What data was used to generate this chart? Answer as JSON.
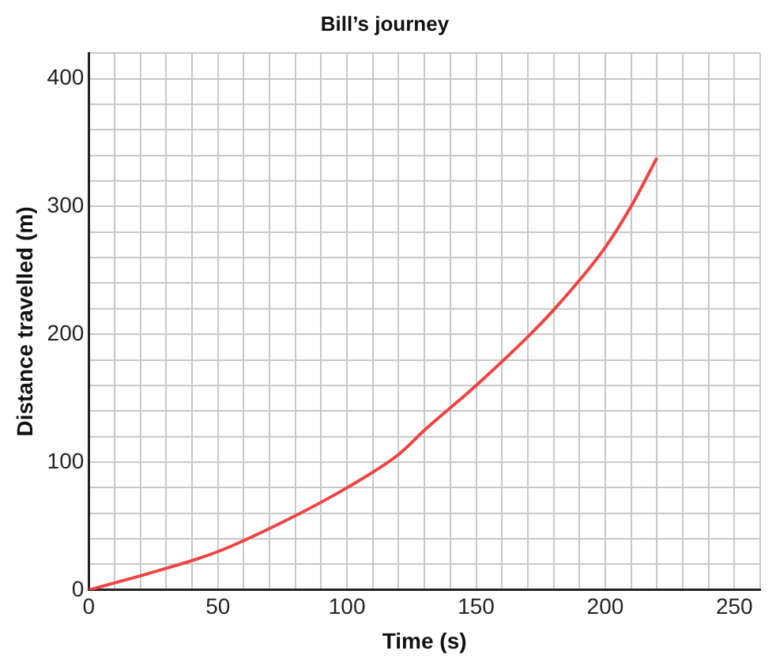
{
  "chart_data": {
    "type": "line",
    "title": "Bill’s journey",
    "xlabel": "Time (s)",
    "ylabel": "Distance travelled (m)",
    "series": [
      {
        "color": "#ee4444",
        "x": [
          0,
          25,
          50,
          75,
          100,
          120,
          130,
          150,
          170,
          180,
          200,
          210,
          220
        ],
        "values": [
          0,
          14,
          30,
          53,
          80,
          106,
          125,
          160,
          198,
          219,
          268,
          300,
          338
        ]
      }
    ],
    "xlim": [
      0,
      260
    ],
    "xticks": [
      0,
      {
        "value": 10,
        "label": null
      },
      {
        "value": 20,
        "label": null
      },
      {
        "value": 30,
        "label": null
      },
      {
        "value": 40,
        "label": null
      },
      50,
      {
        "value": 60,
        "label": null
      },
      {
        "value": 70,
        "label": null
      },
      {
        "value": 80,
        "label": null
      },
      {
        "value": 90,
        "label": null
      },
      100,
      {
        "value": 110,
        "label": null
      },
      {
        "value": 120,
        "label": null
      },
      {
        "value": 130,
        "label": null
      },
      {
        "value": 140,
        "label": null
      },
      150,
      {
        "value": 160,
        "label": null
      },
      {
        "value": 170,
        "label": null
      },
      {
        "value": 180,
        "label": null
      },
      {
        "value": 190,
        "label": null
      },
      200,
      {
        "value": 210,
        "label": null
      },
      {
        "value": 220,
        "label": null
      },
      {
        "value": 230,
        "label": null
      },
      {
        "value": 240,
        "label": null
      },
      250,
      {
        "value": 260,
        "label": null
      }
    ],
    "ylim": [
      0,
      420
    ],
    "yticks": [
      0,
      {
        "value": 20,
        "label": null
      },
      {
        "value": 40,
        "label": null
      },
      {
        "value": 60,
        "label": null
      },
      {
        "value": 80,
        "label": null
      },
      100,
      {
        "value": 120,
        "label": null
      },
      {
        "value": 140,
        "label": null
      },
      {
        "value": 160,
        "label": null
      },
      {
        "value": 180,
        "label": null
      },
      200,
      {
        "value": 220,
        "label": null
      },
      {
        "value": 240,
        "label": null
      },
      {
        "value": 260,
        "label": null
      },
      {
        "value": 280,
        "label": null
      },
      300,
      {
        "value": 320,
        "label": null
      },
      {
        "value": 340,
        "label": null
      },
      {
        "value": 360,
        "label": null
      },
      {
        "value": 380,
        "label": null
      },
      400,
      {
        "value": 420,
        "label": null
      }
    ],
    "grid": true,
    "legend": false,
    "marker": "none",
    "line_style": "solid"
  }
}
